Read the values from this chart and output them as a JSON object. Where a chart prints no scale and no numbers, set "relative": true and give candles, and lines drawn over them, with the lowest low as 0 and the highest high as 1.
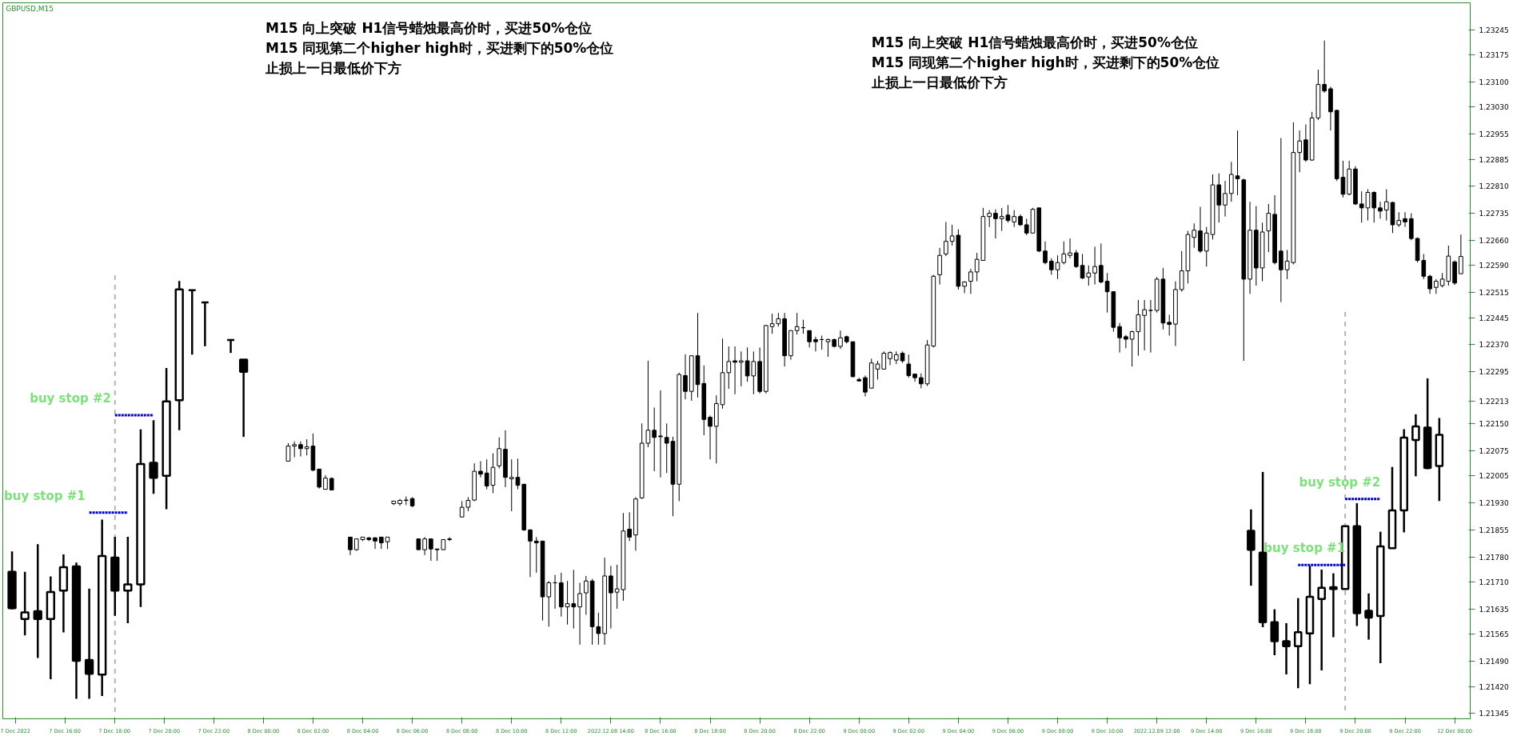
{
  "chart_data": [
    {
      "type": "candlestick",
      "title": "GBPUSD,M15",
      "ylim": [
        1.2133,
        1.2332
      ],
      "categories": [
        "7 Dec 2022",
        null,
        null,
        null,
        null,
        null,
        null,
        null,
        "7 Dec 16:00",
        null,
        null,
        null,
        null,
        null,
        null,
        null,
        "7 Dec 18:00",
        null,
        null,
        null,
        null,
        null,
        null,
        null,
        "7 Dec 20:00",
        null,
        null,
        null,
        null,
        null,
        null,
        null,
        "7 Dec 22:00",
        null,
        null,
        null,
        null,
        null,
        null,
        null,
        "8 Dec 00:00",
        null,
        null,
        null,
        null,
        null,
        null,
        null,
        "8 Dec 02:00",
        null,
        null,
        null,
        null,
        null,
        null,
        null,
        "8 Dec 04:00",
        null,
        null,
        null,
        null,
        null,
        null,
        null,
        "8 Dec 06:00",
        null,
        null,
        null,
        null,
        null,
        null,
        null,
        "8 Dec 08:00",
        null,
        null,
        null,
        null,
        null,
        null,
        null,
        "8 Dec 10:00",
        null,
        null,
        null,
        null,
        null,
        null,
        null,
        "8 Dec 12:00",
        null,
        null,
        null,
        null,
        null,
        null,
        null,
        "2022.12.08 14:00",
        null,
        null,
        null,
        null,
        null,
        null,
        null,
        "8 Dec 16:00",
        null,
        null,
        null,
        null,
        null,
        null,
        null,
        "8 Dec 18:00",
        null,
        null,
        null,
        null,
        null,
        null,
        null,
        "8 Dec 20:00",
        null,
        null,
        null,
        null,
        null,
        null,
        null,
        "8 Dec 22:00",
        null,
        null,
        null,
        null,
        null,
        null,
        null,
        "9 Dec 00:00",
        null,
        null,
        null,
        null,
        null,
        null,
        null,
        "9 Dec 02:00",
        null,
        null,
        null,
        null,
        null,
        null,
        null,
        "9 Dec 04:00",
        null,
        null,
        null,
        null,
        null,
        null,
        null,
        "9 Dec 06:00",
        null,
        null,
        null,
        null,
        null,
        null,
        null,
        "9 Dec 08:00",
        null,
        null,
        null,
        null,
        null,
        null,
        null,
        "9 Dec 10:00",
        null,
        null,
        null,
        null,
        null,
        null,
        null,
        "2022.12.09 12:00",
        null,
        null,
        null,
        null,
        null,
        null,
        null,
        "9 Dec 14:00",
        null,
        null,
        null,
        null,
        null,
        null,
        null,
        "9 Dec 16:00",
        null,
        null,
        null,
        null,
        null,
        null,
        null,
        "9 Dec 18:00",
        null,
        null,
        null,
        null,
        null,
        null,
        null,
        "9 Dec 20:00",
        null,
        null,
        null,
        null,
        null,
        null,
        null,
        "9 Dec 22:00",
        null,
        null,
        null,
        null,
        null,
        null,
        null,
        "12 Dec 00:00",
        null
      ],
      "ohlc": [
        null,
        null,
        null,
        null,
        null,
        null,
        null,
        null,
        null,
        null,
        null,
        null,
        null,
        null,
        null,
        null,
        null,
        null,
        null,
        null,
        null,
        null,
        null,
        null,
        null,
        null,
        null,
        null,
        null,
        null,
        null,
        null,
        null,
        null,
        null,
        null,
        null,
        null,
        null,
        null,
        null,
        null,
        null,
        null,
        [
          1.22046,
          1.22096,
          1.22046,
          1.22088
        ],
        [
          1.22088,
          1.22101,
          1.22057,
          1.22092
        ],
        [
          1.22092,
          1.22101,
          1.22059,
          1.22081
        ],
        [
          1.22081,
          1.22107,
          1.22062,
          1.22086
        ],
        [
          1.22088,
          1.22123,
          1.22018,
          1.22021
        ],
        [
          1.22024,
          1.22024,
          1.2197,
          1.21974
        ],
        [
          1.21968,
          1.22007,
          1.21968,
          1.21999
        ],
        [
          1.21998,
          1.22001,
          1.21966,
          1.21966
        ],
        null,
        null,
        [
          1.21835,
          1.21835,
          1.21785,
          1.218
        ],
        [
          1.218,
          1.2183,
          1.21797,
          1.2183
        ],
        [
          1.21828,
          1.21835,
          1.21824,
          1.21835
        ],
        [
          1.21833,
          1.21835,
          1.21824,
          1.21828
        ],
        [
          1.21833,
          1.21835,
          1.21802,
          1.21824
        ],
        [
          1.21835,
          1.21835,
          1.21802,
          1.21819
        ],
        [
          1.21822,
          1.21835,
          1.21802,
          1.21835
        ],
        [
          1.21928,
          1.21935,
          1.21924,
          1.21935
        ],
        [
          1.21928,
          1.21941,
          1.21922,
          1.21937
        ],
        [
          1.21938,
          1.21948,
          1.21924,
          1.21937
        ],
        [
          1.21942,
          1.21946,
          1.21918,
          1.21922
        ],
        [
          1.2183,
          1.2183,
          1.218,
          1.218
        ],
        [
          1.218,
          1.21835,
          1.21785,
          1.2183
        ],
        [
          1.2183,
          1.2183,
          1.21769,
          1.21802
        ],
        [
          1.21802,
          1.21802,
          1.21769,
          1.218
        ],
        [
          1.218,
          1.21828,
          1.218,
          1.21828
        ],
        [
          1.21828,
          1.21835,
          1.21824,
          1.2183
        ],
        null,
        [
          1.21891,
          1.21935,
          1.21891,
          1.21918
        ],
        [
          1.21918,
          1.21946,
          1.21907,
          1.21937
        ],
        [
          1.21938,
          1.2204,
          1.21935,
          1.22018
        ],
        [
          1.22018,
          1.22046,
          1.22001,
          1.2201
        ],
        [
          1.22013,
          1.22051,
          1.21968,
          1.21977
        ],
        [
          1.21979,
          1.22068,
          1.21957,
          1.22029
        ],
        [
          1.22033,
          1.22112,
          1.22026,
          1.22081
        ],
        [
          1.22079,
          1.22132,
          1.21974,
          1.22001
        ],
        [
          1.21997,
          1.22051,
          1.21907,
          1.22001
        ],
        [
          1.22001,
          1.22053,
          1.21968,
          1.21979
        ],
        [
          1.21982,
          1.21982,
          1.21852,
          1.21855
        ],
        [
          1.21855,
          1.21857,
          1.21724,
          1.21824
        ],
        [
          1.21824,
          1.21835,
          1.21736,
          1.21819
        ],
        [
          1.21824,
          1.21824,
          1.21603,
          1.21669
        ],
        [
          1.21669,
          1.21713,
          1.21586,
          1.21708
        ],
        [
          1.21708,
          1.2173,
          1.21636,
          1.21708
        ],
        [
          1.21708,
          1.21736,
          1.21614,
          1.21641
        ],
        [
          1.21641,
          1.21713,
          1.21592,
          1.2165
        ],
        [
          1.2165,
          1.21744,
          1.21581,
          1.21641
        ],
        [
          1.21641,
          1.21708,
          1.21536,
          1.21678
        ],
        [
          1.2168,
          1.21727,
          1.21619,
          1.21713
        ],
        [
          1.21713,
          1.21719,
          1.21536,
          1.21586
        ],
        [
          1.21586,
          1.21625,
          1.21536,
          1.21567
        ],
        [
          1.21567,
          1.21778,
          1.21536,
          1.21727
        ],
        [
          1.21727,
          1.21755,
          1.21581,
          1.2168
        ],
        [
          1.21682,
          1.21758,
          1.21636,
          1.21691
        ],
        [
          1.21689,
          1.21902,
          1.21658,
          1.21852
        ],
        [
          1.21857,
          1.21904,
          1.21824,
          1.21835
        ],
        [
          1.21841,
          1.21946,
          1.21797,
          1.21941
        ],
        [
          1.21944,
          1.22151,
          1.21941,
          1.22096
        ],
        [
          1.22096,
          1.22325,
          1.22085,
          1.22132
        ],
        [
          1.22132,
          1.22195,
          1.22018,
          1.22112
        ],
        [
          1.22116,
          1.22243,
          1.22001,
          1.22114
        ],
        [
          1.22112,
          1.22151,
          1.22013,
          1.22096
        ],
        [
          1.22101,
          1.22114,
          1.21893,
          1.21982
        ],
        [
          1.21982,
          1.22292,
          1.21935,
          1.22287
        ],
        [
          1.22284,
          1.22343,
          1.22218,
          1.2224
        ],
        [
          1.2224,
          1.22339,
          1.22214,
          1.22339
        ],
        [
          1.22339,
          1.22458,
          1.22223,
          1.22259
        ],
        [
          1.22262,
          1.22312,
          1.22118,
          1.22162
        ],
        [
          1.22168,
          1.22173,
          1.22051,
          1.22143
        ],
        [
          1.22143,
          1.22229,
          1.2204,
          1.22206
        ],
        [
          1.22203,
          1.22387,
          1.22192,
          1.22292
        ],
        [
          1.22292,
          1.22365,
          1.22247,
          1.22323
        ],
        [
          1.22325,
          1.22365,
          1.22232,
          1.22321
        ],
        [
          1.22321,
          1.22351,
          1.22254,
          1.22325
        ],
        [
          1.22325,
          1.22362,
          1.22267,
          1.22283
        ],
        [
          1.22283,
          1.22351,
          1.22232,
          1.22323
        ],
        [
          1.22323,
          1.22362,
          1.22234,
          1.2224
        ],
        [
          1.2224,
          1.22425,
          1.22234,
          1.22423
        ],
        [
          1.2242,
          1.22456,
          1.224,
          1.22428
        ],
        [
          1.22428,
          1.22458,
          1.2242,
          1.22442
        ],
        [
          1.22442,
          1.22458,
          1.22309,
          1.22339
        ],
        [
          1.22339,
          1.22409,
          1.22328,
          1.22409
        ],
        [
          1.22409,
          1.22458,
          1.22398,
          1.2242
        ],
        [
          1.22417,
          1.22439,
          1.224,
          1.22417
        ],
        [
          1.22409,
          1.22409,
          1.22362,
          1.22378
        ],
        [
          1.22384,
          1.22392,
          1.22351,
          1.22378
        ],
        [
          1.22384,
          1.22395,
          1.22356,
          1.22384
        ],
        [
          1.22378,
          1.22387,
          1.22336,
          1.22384
        ],
        [
          1.22384,
          1.22387,
          1.22362,
          1.22365
        ],
        [
          1.22365,
          1.22409,
          1.22358,
          1.22389
        ],
        [
          1.22392,
          1.22395,
          1.22373,
          1.22378
        ],
        [
          1.22378,
          1.22378,
          1.22279,
          1.22281
        ],
        [
          1.22273,
          1.22278,
          1.22267,
          1.22269
        ],
        [
          1.22278,
          1.22284,
          1.22226,
          1.22238
        ],
        [
          1.22249,
          1.22331,
          1.22249,
          1.22319
        ],
        [
          1.22302,
          1.22325,
          1.22273,
          1.22316
        ],
        [
          1.22302,
          1.22351,
          1.22302,
          1.22346
        ],
        [
          1.22331,
          1.22351,
          1.22313,
          1.22348
        ],
        [
          1.22327,
          1.22351,
          1.22316,
          1.22342
        ],
        [
          1.22346,
          1.22351,
          1.22319,
          1.22325
        ],
        [
          1.22316,
          1.22342,
          1.22278,
          1.22284
        ],
        [
          1.22288,
          1.2229,
          1.22267,
          1.22278
        ],
        [
          1.22278,
          1.2229,
          1.22249,
          1.22261
        ],
        [
          1.22261,
          1.22383,
          1.22255,
          1.22369
        ],
        [
          1.22366,
          1.22564,
          1.22362,
          1.2256
        ],
        [
          1.22564,
          1.22639,
          1.22537,
          1.22618
        ],
        [
          1.22622,
          1.22711,
          1.22616,
          1.22657
        ],
        [
          1.22657,
          1.22703,
          1.22645,
          1.22672
        ],
        [
          1.22674,
          1.22691,
          1.22523,
          1.22532
        ],
        [
          1.22532,
          1.22546,
          1.22513,
          1.22544
        ],
        [
          1.22546,
          1.22581,
          1.22511,
          1.22572
        ],
        [
          1.22572,
          1.22625,
          1.22546,
          1.22607
        ],
        [
          1.22604,
          1.2275,
          1.22604,
          1.22726
        ],
        [
          1.22726,
          1.22744,
          1.22697,
          1.22735
        ],
        [
          1.22735,
          1.22746,
          1.22665,
          1.2272
        ],
        [
          1.2272,
          1.2275,
          1.22686,
          1.22726
        ],
        [
          1.2273,
          1.22758,
          1.22709,
          1.22715
        ],
        [
          1.22711,
          1.22744,
          1.22697,
          1.22726
        ],
        [
          1.22726,
          1.22732,
          1.227,
          1.22703
        ],
        [
          1.22703,
          1.2272,
          1.22674,
          1.2268
        ],
        [
          1.2268,
          1.2275,
          1.2268,
          1.22746
        ],
        [
          1.2275,
          1.2275,
          1.22627,
          1.2263
        ],
        [
          1.2263,
          1.22657,
          1.22593,
          1.22598
        ],
        [
          1.22602,
          1.2261,
          1.22564,
          1.22578
        ],
        [
          1.22578,
          1.22618,
          1.22552,
          1.22598
        ],
        [
          1.22598,
          1.22657,
          1.22593,
          1.22622
        ],
        [
          1.22618,
          1.22665,
          1.2261,
          1.22625
        ],
        [
          1.22625,
          1.22633,
          1.22583,
          1.22587
        ],
        [
          1.2259,
          1.22622,
          1.22552,
          1.22555
        ],
        [
          1.22558,
          1.2259,
          1.22534,
          1.22569
        ],
        [
          1.22569,
          1.22642,
          1.22537,
          1.22587
        ],
        [
          1.2259,
          1.22651,
          1.2254,
          1.22544
        ],
        [
          1.22546,
          1.22569,
          1.22459,
          1.22517
        ],
        [
          1.22517,
          1.22517,
          1.22406,
          1.22418
        ],
        [
          1.2242,
          1.2243,
          1.22348,
          1.22389
        ],
        [
          1.22392,
          1.22397,
          1.2236,
          1.22385
        ],
        [
          1.22385,
          1.22409,
          1.22309,
          1.22406
        ],
        [
          1.22406,
          1.22494,
          1.22339,
          1.22453
        ],
        [
          1.22451,
          1.22494,
          1.22354,
          1.22467
        ],
        [
          1.22465,
          1.22494,
          1.22348,
          1.22465
        ],
        [
          1.22465,
          1.22558,
          1.22459,
          1.22552
        ],
        [
          1.22552,
          1.22583,
          1.22412,
          1.2243
        ],
        [
          1.22432,
          1.22453,
          1.22395,
          1.22426
        ],
        [
          1.22427,
          1.22546,
          1.22366,
          1.22523
        ],
        [
          1.22523,
          1.2263,
          1.22517,
          1.22575
        ],
        [
          1.22575,
          1.22686,
          1.2254,
          1.22676
        ],
        [
          1.22668,
          1.22707,
          1.22639,
          1.22688
        ],
        [
          1.22686,
          1.22753,
          1.22625,
          1.2263
        ],
        [
          1.2263,
          1.22697,
          1.22587,
          1.2268
        ],
        [
          1.22676,
          1.22843,
          1.22662,
          1.22814
        ],
        [
          1.22814,
          1.22846,
          1.22709,
          1.22758
        ],
        [
          1.22758,
          1.22825,
          1.22726,
          1.2279
        ],
        [
          1.2279,
          1.22878,
          1.22767,
          1.22843
        ],
        [
          1.22839,
          1.22965,
          1.22785,
          1.22831
        ],
        [
          1.22828,
          1.22831,
          1.22325,
          1.22552
        ],
        [
          1.22552,
          1.22767,
          1.22511,
          1.22688
        ],
        [
          1.22688,
          1.22755,
          1.22534,
          1.22583
        ],
        [
          1.22583,
          1.22709,
          1.22546,
          1.22683
        ],
        [
          1.22686,
          1.22761,
          1.22627,
          1.22735
        ],
        [
          1.22732,
          1.22785,
          1.22593,
          1.22598
        ],
        [
          1.2263,
          1.22944,
          1.22488,
          1.22578
        ],
        [
          1.22578,
          1.22633,
          1.22552,
          1.22602
        ],
        [
          1.22598,
          1.22988,
          1.22593,
          1.22904
        ],
        [
          1.22904,
          1.22965,
          1.22849,
          1.22936
        ],
        [
          1.22939,
          1.22982,
          1.22878,
          1.22883
        ],
        [
          1.22883,
          1.23017,
          1.22881,
          1.23
        ],
        [
          1.23,
          1.23134,
          1.22994,
          1.23093
        ],
        [
          1.23093,
          1.23215,
          1.2307,
          1.23075
        ],
        [
          1.23081,
          1.23087,
          1.22965,
          1.23017
        ],
        [
          1.23021,
          1.23023,
          1.22825,
          1.22831
        ],
        [
          1.22835,
          1.22881,
          1.22779,
          1.22788
        ],
        [
          1.22788,
          1.22881,
          1.22785,
          1.22858
        ],
        [
          1.22858,
          1.22866,
          1.22758,
          1.22761
        ],
        [
          1.22761,
          1.22796,
          1.22709,
          1.2275
        ],
        [
          1.2275,
          1.22802,
          1.22715,
          1.22793
        ],
        [
          1.22793,
          1.22796,
          1.22709,
          1.2275
        ],
        [
          1.2275,
          1.22767,
          1.2272,
          1.22741
        ],
        [
          1.22744,
          1.22802,
          1.22715,
          1.22767
        ],
        [
          1.22765,
          1.22767,
          1.2268,
          1.22703
        ],
        [
          1.22703,
          1.22738,
          1.22697,
          1.22715
        ],
        [
          1.2272,
          1.22738,
          1.22697,
          1.22711
        ],
        [
          1.2272,
          1.22735,
          1.2266,
          1.22665
        ],
        [
          1.22665,
          1.22668,
          1.22598,
          1.22604
        ],
        [
          1.22604,
          1.22622,
          1.22552,
          1.2256
        ],
        [
          1.2256,
          1.22564,
          1.22511,
          1.22525
        ],
        [
          1.22529,
          1.22552,
          1.22511,
          1.22546
        ],
        [
          1.22534,
          1.22569,
          1.22529,
          1.22552
        ],
        [
          1.22546,
          1.22645,
          1.22534,
          1.22616
        ],
        [
          1.226,
          1.22604,
          1.22536,
          1.22541
        ],
        [
          1.22567,
          1.22676,
          1.22567,
          1.22615
        ]
      ],
      "yticks": [
        1.23245,
        1.23175,
        {
          "value": 1.231,
          "label": "1.23100"
        },
        {
          "value": 1.2303,
          "label": "1.23030"
        },
        1.22955,
        1.22885,
        {
          "value": 1.2281,
          "label": "1.22810"
        },
        1.22735,
        {
          "value": 1.2266,
          "label": "1.22660"
        },
        {
          "value": 1.2259,
          "label": "1.22590"
        },
        1.22515,
        1.22445,
        {
          "value": 1.2237,
          "label": "1.22370"
        },
        1.22295,
        1.22213,
        {
          "value": 1.2215,
          "label": "1.22150"
        },
        1.22075,
        1.22005,
        {
          "value": 1.2193,
          "label": "1.21930"
        },
        1.21855,
        {
          "value": 1.2178,
          "label": "1.21780"
        },
        {
          "value": 1.2171,
          "label": "1.21710"
        },
        1.21635,
        1.21565,
        {
          "value": 1.2149,
          "label": "1.21490"
        },
        {
          "value": 1.2142,
          "label": "1.21420"
        },
        1.21345
      ],
      "annotations": [
        "M15 向上突破 H1信号蜡烛最高价时，买进50%仓位",
        "M15 同现第二个higher high时，买进剩下的50%仓位",
        "止损上一日最低价下方",
        "M15 向上突破 H1信号蜡烛最高价时，买进50%仓位",
        "M15 同现第二个higher high时，买进剩下的50%仓位",
        "止损上一日最低价下方"
      ]
    },
    {
      "type": "candlestick",
      "relative": true,
      "tick_labels": false,
      "categories": [
        null,
        null,
        null,
        null,
        null,
        null,
        null,
        null,
        null,
        null,
        null,
        null,
        null,
        null,
        null,
        null,
        null,
        null,
        null
      ],
      "ohlc": [
        [
          0.304,
          0.353,
          0.214,
          0.217
        ],
        [
          0.191,
          0.304,
          0.152,
          0.207
        ],
        [
          0.21,
          0.37,
          0.098,
          0.191
        ],
        [
          0.191,
          0.293,
          0.047,
          0.256
        ],
        [
          0.259,
          0.346,
          0.159,
          0.315
        ],
        [
          0.317,
          0.326,
          0,
          0.091
        ],
        [
          0.093,
          0.264,
          0,
          0.06
        ],
        [
          0.058,
          0.429,
          0.007,
          0.342
        ],
        [
          0.338,
          0.388,
          0.199,
          0.259
        ],
        [
          0.259,
          0.388,
          0.181,
          0.274
        ],
        [
          0.274,
          0.645,
          0.22,
          0.562
        ],
        [
          0.565,
          0.667,
          0.491,
          0.529
        ],
        [
          0.534,
          0.792,
          0.454,
          0.712
        ],
        [
          0.715,
          1,
          0.643,
          0.98
        ],
        [
          0.978,
          0.978,
          0.824,
          0.978
        ],
        [
          0.949,
          0.949,
          0.844,
          0.949
        ],
        null,
        [
          0.859,
          0.859,
          0.828,
          0.859
        ],
        [
          0.812,
          0.812,
          0.627,
          0.783
        ]
      ],
      "series": [
        {
          "type": "line",
          "values": [
            null,
            null,
            null,
            null,
            null,
            null,
            0.446,
            0.446,
            0.446,
            0.446,
            null,
            null,
            null,
            null,
            null,
            null,
            null,
            null,
            null
          ],
          "color": "#0000cd",
          "line_style": "dotted"
        },
        {
          "type": "line",
          "values": [
            null,
            null,
            null,
            null,
            null,
            null,
            null,
            null,
            0.679,
            0.679,
            0.679,
            0.679,
            null,
            null,
            null,
            null,
            null,
            null,
            null
          ],
          "color": "#0000cd",
          "line_style": "dotted"
        }
      ],
      "annotations": [
        "buy stop #1",
        "buy stop #2"
      ]
    },
    {
      "type": "candlestick",
      "relative": true,
      "tick_labels": false,
      "categories": [
        null,
        null,
        null,
        null,
        null,
        null,
        null,
        null,
        null,
        null,
        null,
        null,
        null,
        null,
        null,
        null,
        null
      ],
      "ohlc": [
        [
          0.508,
          0.577,
          0.331,
          0.447
        ],
        [
          0.438,
          0.698,
          0.197,
          0.213
        ],
        [
          0.213,
          0.255,
          0.107,
          0.152
        ],
        [
          0.152,
          0.21,
          0.045,
          0.136
        ],
        [
          0.136,
          0.291,
          0,
          0.181
        ],
        [
          0.177,
          0.395,
          0.013,
          0.295
        ],
        [
          0.288,
          0.383,
          0.058,
          0.324
        ],
        [
          0.326,
          0.371,
          0.165,
          0.32
        ],
        [
          0.32,
          0.523,
          0.32,
          0.523
        ],
        [
          0.523,
          0.597,
          0.201,
          0.242
        ],
        [
          0.25,
          0.306,
          0.157,
          0.228
        ],
        [
          0.233,
          0.505,
          0.081,
          0.458
        ],
        [
          0.452,
          0.714,
          0.452,
          0.574
        ],
        [
          0.574,
          0.836,
          0.503,
          0.809
        ],
        [
          0.801,
          0.884,
          0.684,
          0.845
        ],
        [
          0.841,
          1,
          0.707,
          0.711
        ],
        [
          0.717,
          0.872,
          0.604,
          0.818
        ]
      ],
      "series": [
        {
          "type": "line",
          "values": [
            null,
            null,
            null,
            null,
            0.398,
            0.398,
            0.398,
            0.398,
            0.398,
            null,
            null,
            null,
            null,
            null,
            null,
            null,
            null
          ],
          "color": "#0000cd",
          "line_style": "dotted"
        },
        {
          "type": "line",
          "values": [
            null,
            null,
            null,
            null,
            null,
            null,
            null,
            null,
            0.611,
            0.611,
            0.611,
            0.611,
            null,
            null,
            null,
            null,
            null
          ],
          "color": "#0000cd",
          "line_style": "dotted"
        }
      ],
      "annotations": [
        "buy stop #1",
        "buy stop #2"
      ]
    }
  ]
}
